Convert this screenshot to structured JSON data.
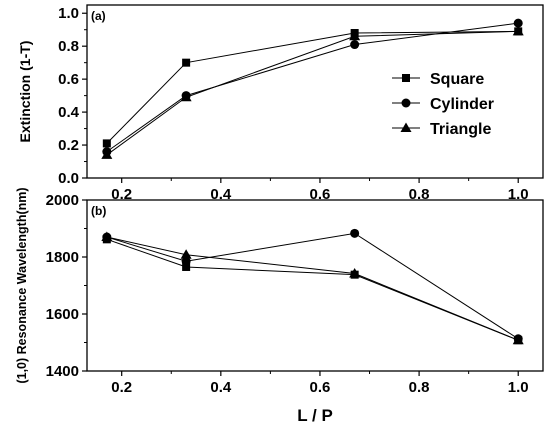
{
  "chart_data": [
    {
      "type": "line",
      "panel_label": "(a)",
      "ylabel": "Extinction (1-T)",
      "xlim": [
        0.13,
        1.05
      ],
      "ylim": [
        0.0,
        1.05
      ],
      "xticks": [
        "0.2",
        "0.4",
        "0.6",
        "0.8",
        "1.0"
      ],
      "xtick_values": [
        0.2,
        0.4,
        0.6,
        0.8,
        1.0
      ],
      "yticks": [
        "0.0",
        "0.2",
        "0.4",
        "0.6",
        "0.8",
        "1.0"
      ],
      "ytick_values": [
        0.0,
        0.2,
        0.4,
        0.6,
        0.8,
        1.0
      ],
      "legend_position": "right",
      "x": [
        0.17,
        0.33,
        0.67,
        1.0
      ],
      "series": [
        {
          "name": "Square",
          "marker": "square",
          "values": [
            0.21,
            0.7,
            0.88,
            0.89
          ]
        },
        {
          "name": "Cylinder",
          "marker": "circle",
          "values": [
            0.16,
            0.5,
            0.81,
            0.94
          ]
        },
        {
          "name": "Triangle",
          "marker": "triangle",
          "values": [
            0.14,
            0.49,
            0.86,
            0.89
          ]
        }
      ]
    },
    {
      "type": "line",
      "panel_label": "(b)",
      "ylabel": "(1,0) Resonance Wavelength(nm)",
      "xlabel": "L / P",
      "xlim": [
        0.13,
        1.05
      ],
      "ylim": [
        1400,
        2000
      ],
      "xticks": [
        "0.2",
        "0.4",
        "0.6",
        "0.8",
        "1.0"
      ],
      "xtick_values": [
        0.2,
        0.4,
        0.6,
        0.8,
        1.0
      ],
      "yticks": [
        "1400",
        "1600",
        "1800",
        "2000"
      ],
      "ytick_values": [
        1400,
        1600,
        1800,
        2000
      ],
      "x": [
        0.17,
        0.33,
        0.67,
        1.0
      ],
      "series": [
        {
          "name": "Square",
          "marker": "square",
          "values": [
            1862,
            1765,
            1738,
            1508
          ]
        },
        {
          "name": "Cylinder",
          "marker": "circle",
          "values": [
            1870,
            1785,
            1883,
            1513
          ]
        },
        {
          "name": "Triangle",
          "marker": "triangle",
          "values": [
            1870,
            1808,
            1742,
            1508
          ]
        }
      ]
    }
  ]
}
